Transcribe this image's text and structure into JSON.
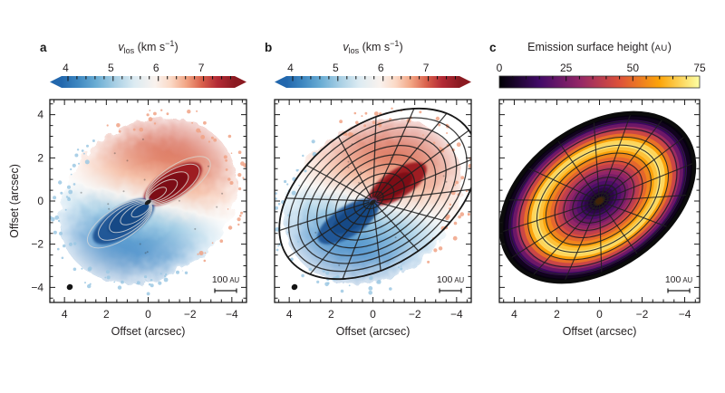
{
  "panels": [
    {
      "label": "a",
      "colorbar": {
        "title": {
          "var": "v",
          "sub": "los",
          "mid": " (km s",
          "sup": "−1",
          "end": ")"
        },
        "ticks": [
          {
            "label": "4",
            "value": 4
          },
          {
            "label": "5",
            "value": 5
          },
          {
            "label": "6",
            "value": 6
          },
          {
            "label": "7",
            "value": 7
          }
        ],
        "range_est": [
          3.65,
          8.0
        ],
        "colormap": "RdBu_r"
      },
      "axes": {
        "xlabel": "Offset (arcsec)",
        "ylabel": "Offset (arcsec)",
        "xticks": [
          {
            "label": "4",
            "value": 4
          },
          {
            "label": "2",
            "value": 2
          },
          {
            "label": "0",
            "value": 0
          },
          {
            "label": "−2",
            "value": -2
          },
          {
            "label": "−4",
            "value": -4
          }
        ],
        "yticks": [
          {
            "label": "4",
            "value": 4
          },
          {
            "label": "2",
            "value": 2
          },
          {
            "label": "0",
            "value": 0
          },
          {
            "label": "−2",
            "value": -2
          },
          {
            "label": "−4",
            "value": -4
          }
        ],
        "x_range": [
          4.7,
          -4.7
        ],
        "y_range": [
          -4.7,
          4.7
        ]
      },
      "scalebar": {
        "value": "100",
        "unit": "AU"
      },
      "has_beam": true
    },
    {
      "label": "b",
      "colorbar": {
        "title": {
          "var": "v",
          "sub": "los",
          "mid": " (km s",
          "sup": "−1",
          "end": ")"
        },
        "ticks": [
          {
            "label": "4",
            "value": 4
          },
          {
            "label": "5",
            "value": 5
          },
          {
            "label": "6",
            "value": 6
          },
          {
            "label": "7",
            "value": 7
          }
        ],
        "range_est": [
          3.65,
          8.0
        ],
        "colormap": "RdBu_r"
      },
      "axes": {
        "xlabel": "Offset (arcsec)",
        "xticks": [
          {
            "label": "4",
            "value": 4
          },
          {
            "label": "2",
            "value": 2
          },
          {
            "label": "0",
            "value": 0
          },
          {
            "label": "−2",
            "value": -2
          },
          {
            "label": "−4",
            "value": -4
          }
        ],
        "x_range": [
          4.7,
          -4.7
        ],
        "y_range": [
          -4.7,
          4.7
        ]
      },
      "scalebar": {
        "value": "100",
        "unit": "AU"
      },
      "has_beam": true
    },
    {
      "label": "c",
      "colorbar": {
        "title": {
          "pre": "Emission surface height (",
          "unit": "AU",
          "end": ")"
        },
        "ticks": [
          {
            "label": "0",
            "value": 0
          },
          {
            "label": "25",
            "value": 25
          },
          {
            "label": "50",
            "value": 50
          },
          {
            "label": "75",
            "value": 75
          }
        ],
        "range": [
          0,
          75
        ],
        "colormap": "inferno"
      },
      "axes": {
        "xlabel": "Offset (arcsec)",
        "xticks": [
          {
            "label": "4",
            "value": 4
          },
          {
            "label": "2",
            "value": 2
          },
          {
            "label": "0",
            "value": 0
          },
          {
            "label": "−2",
            "value": -2
          },
          {
            "label": "−4",
            "value": -4
          }
        ],
        "x_range": [
          4.7,
          -4.7
        ],
        "y_range": [
          -4.7,
          4.7
        ]
      },
      "scalebar": {
        "value": "100",
        "unit": "AU"
      },
      "has_beam": false
    }
  ],
  "chart_data": [
    {
      "type": "heatmap",
      "panel": "a",
      "title": "v_los (km s−1)",
      "xlabel": "Offset (arcsec)",
      "ylabel": "Offset (arcsec)",
      "x_range": [
        4.7,
        -4.7
      ],
      "y_range": [
        -4.7,
        4.7
      ],
      "colorbar_ticks": [
        4,
        5,
        6,
        7
      ],
      "colorbar_range_est": [
        3.65,
        8.0
      ],
      "colormap": "RdBu_r",
      "colormap_stops": [
        [
          0,
          "#2267ad"
        ],
        [
          0.09,
          "#3c86c0"
        ],
        [
          0.2,
          "#6aadd4"
        ],
        [
          0.31,
          "#a8cfe4"
        ],
        [
          0.42,
          "#dcebf2"
        ],
        [
          0.54,
          "#f9f2ee"
        ],
        [
          0.63,
          "#fbd9c6"
        ],
        [
          0.72,
          "#f2a584"
        ],
        [
          0.81,
          "#d9604b"
        ],
        [
          0.9,
          "#b32a35"
        ],
        [
          1,
          "#8b1a21"
        ]
      ],
      "map_gradient_stops": [
        [
          0,
          "#2d6fb3"
        ],
        [
          0.2,
          "#3c87c6"
        ],
        [
          0.38,
          "#9fcbe4"
        ],
        [
          0.5,
          "#f5f3f1"
        ],
        [
          0.62,
          "#f5c0a8"
        ],
        [
          0.8,
          "#d96a50"
        ],
        [
          1,
          "#c94232"
        ]
      ],
      "contour_levels": 5,
      "scalebar": "100 AU",
      "description": "Observed line-of-sight velocity map of a rotating protoplanetary disk. Blueshifted emission (~4 km/s) fills the lower-left half, redshifted emission (~7.5 km/s) the upper-right half; white transition band along the disk minor axis (upper-left to lower-right). Dark high-velocity lobes with grey nested contours flank the centre along a position angle of about −35°. Beam ellipse at lower left, 100 AU scale bar at lower right."
    },
    {
      "type": "heatmap",
      "panel": "b",
      "title": "v_los (km s−1)",
      "xlabel": "Offset (arcsec)",
      "x_range": [
        4.7,
        -4.7
      ],
      "y_range": [
        -4.7,
        4.7
      ],
      "colorbar_ticks": [
        4,
        5,
        6,
        7
      ],
      "colorbar_range_est": [
        3.65,
        8.0
      ],
      "colormap": "RdBu_r",
      "overlay": "best-fit disk wireframe",
      "wireframe": {
        "rings": 10,
        "spokes": 16,
        "position_angle_deg": -35
      },
      "scalebar": "100 AU",
      "description": "Same velocity map as panel a with the best-fit geometric model of the flared emission surface overlaid as a black wireframe: concentric tilted ellipses crossed by radial spokes converging on the disk centre."
    },
    {
      "type": "heatmap",
      "panel": "c",
      "title": "Emission surface height (AU)",
      "xlabel": "Offset (arcsec)",
      "x_range": [
        4.7,
        -4.7
      ],
      "y_range": [
        -4.7,
        4.7
      ],
      "colorbar_ticks": [
        0,
        25,
        50,
        75
      ],
      "colorbar_range": [
        0,
        75
      ],
      "colormap": "inferno",
      "colormap_stops": [
        [
          0,
          "#000004"
        ],
        [
          0.2,
          "#420a68"
        ],
        [
          0.4,
          "#932667"
        ],
        [
          0.6,
          "#dd513a"
        ],
        [
          0.8,
          "#fca50a"
        ],
        [
          1,
          "#fcffa4"
        ]
      ],
      "wireframe": {
        "rings": 11,
        "spokes": 16,
        "position_angle_deg": -35
      },
      "scalebar": "100 AU",
      "description": "Model emission-surface height across the disk: near 0 AU (black) at the centre, rising to ~75 AU (bright yellow annulus) at intermediate radii, and decreasing again toward the dark outer rim; the same ring-and-spoke wireframe is drawn on top of the thick black disk outline."
    }
  ]
}
